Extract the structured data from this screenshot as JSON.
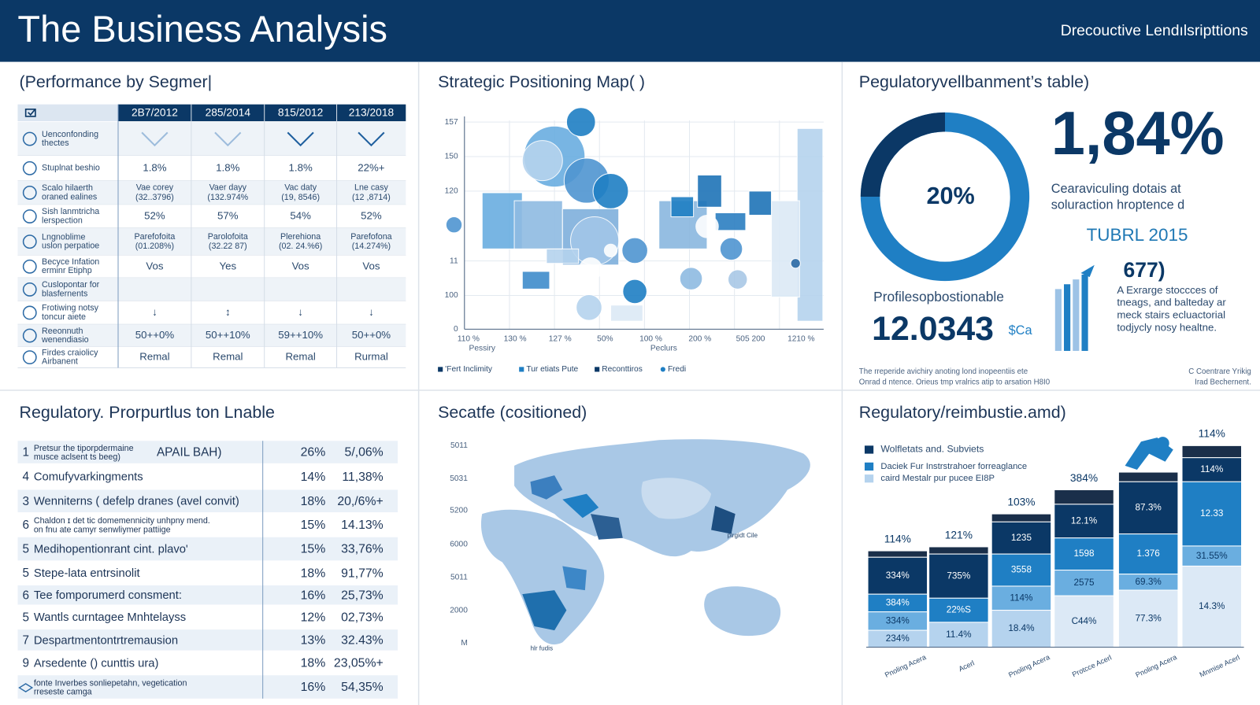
{
  "header": {
    "title": "The Business Analysis",
    "subtitle": "Drecouctive Lendılsripttions"
  },
  "performance": {
    "title": "(Performance by Segmer|",
    "columns": [
      "2B7/2012",
      "285/2014",
      "815/2012",
      "213/2018"
    ],
    "rows": [
      {
        "label": [
          "Uenconfonding",
          "thectes"
        ]
      },
      {
        "label": [
          "Stuplnat beshio"
        ],
        "cells": [
          [
            "1.8%"
          ],
          [
            "1.8%"
          ],
          [
            "1.8%"
          ],
          [
            "22%+"
          ]
        ]
      },
      {
        "label": [
          "Scalo hilaerth",
          "oraned ealines"
        ],
        "cells": [
          [
            "Vae corey",
            "(32..3796)"
          ],
          [
            "Vaer dayy",
            "(132.974%"
          ],
          [
            "Vac daty",
            "(19, 8546)"
          ],
          [
            "Lne casy",
            "(12 ,8714)"
          ]
        ]
      },
      {
        "label": [
          "Sish lanmtricha",
          "lerspection"
        ],
        "cells": [
          [
            "52%"
          ],
          [
            "57%"
          ],
          [
            "54%"
          ],
          [
            "52%"
          ]
        ]
      },
      {
        "label": [
          "Lngnoblime",
          "uslon perpatioe"
        ],
        "cells": [
          [
            "Parefofoita",
            "(01.208%)"
          ],
          [
            "Parolofoita",
            "(32.22 87)"
          ],
          [
            "Plerehiona",
            "(02. 24.%6)"
          ],
          [
            "Parefofona",
            "(14.274%)"
          ]
        ]
      },
      {
        "label": [
          "Becyce Infation",
          "erminr Etiphp"
        ],
        "cells": [
          [
            "Vos"
          ],
          [
            "Yes"
          ],
          [
            "Vos"
          ],
          [
            "Vos"
          ]
        ]
      },
      {
        "label": [
          "Cuslopontar for",
          "blasfernents"
        ]
      },
      {
        "label": [
          "Frotiwing notsy",
          "toncur aiete"
        ],
        "cells": [
          [
            "↓"
          ],
          [
            "↕"
          ],
          [
            "↓"
          ],
          [
            "↓"
          ]
        ]
      },
      {
        "label": [
          "Reeonnuth",
          "wenendiasio"
        ],
        "cells": [
          [
            "50++0%"
          ],
          [
            "50++10%"
          ],
          [
            "59++10%"
          ],
          [
            "50++0%"
          ]
        ]
      },
      {
        "label": [
          "Firdes craiolicy",
          "Airbanent"
        ],
        "cells": [
          [
            "Remal"
          ],
          [
            "Remal"
          ],
          [
            "Remal"
          ],
          [
            "Rurmal"
          ]
        ]
      }
    ]
  },
  "positioning": {
    "title": "Strategic Positioning Map( )",
    "y_labels": [
      "157",
      "150",
      "120",
      "11",
      "100",
      "0"
    ],
    "x_labels": [
      "110 %",
      "130 %",
      "127 %",
      "50%",
      "100 %",
      "200 %",
      "505 200",
      "1210 %"
    ],
    "x_sublabels": [
      "Pessiry",
      "Peclurs"
    ],
    "legend": [
      "'Fert Inclimity",
      "Tur etiats Pute",
      "Reconttiros",
      "Fredi"
    ]
  },
  "regulatory": {
    "title": "Pegulatoryvellbanment’s table)",
    "donut_label": "20%",
    "kpi": "1,84%",
    "kpi_text": [
      "Cearaviculing dotais at",
      "soluraction hroptence d"
    ],
    "year": "TUBRL 2015",
    "count": "677)",
    "count_text": [
      "A Exrarge stoccces of",
      "tneags, and balteday ar",
      "meck stairs ecluactorial",
      "todjycly nosy healtne."
    ],
    "profile_label": "Profilesopbostionable",
    "profile_value": "12.0343",
    "profile_unit": "$Ca",
    "footnote": [
      "The rreperide avichiry anoting lond inopeentiis ete",
      "Onrad d ntence. Orieus tmp vralrics atip to arsation H8I0"
    ],
    "source": [
      "C Coentrare Yrikig",
      "Irad Bechernent."
    ]
  },
  "proportions": {
    "title": "Regulatory. Prorpurtlus ton Lnable",
    "rows": [
      {
        "num": "1",
        "label": [
          "Pretsur the tiporpdermaine",
          "musce aclsent ts beeg)"
        ],
        "extra": "APAIL BAH)",
        "pct": "26%",
        "value": "5/,06%"
      },
      {
        "num": "4",
        "label": [
          "Comufyvarkingments"
        ],
        "pct": "14%",
        "value": "11,38%"
      },
      {
        "num": "3",
        "label": [
          "Wenniterns ( defelp dranes (avel convit)"
        ],
        "pct": "18%",
        "value": "20,/6%+"
      },
      {
        "num": "6",
        "label": [
          "Chaldon ɪ det tic domemennicity unhpny mend.",
          "on fnu ate camyr senwliymer pattiige"
        ],
        "pct": "15%",
        "value": "14.13%"
      },
      {
        "num": "5",
        "label": [
          "Medihopentionrant cint. plavo'"
        ],
        "pct": "15%",
        "value": "33,76%"
      },
      {
        "num": "5",
        "label": [
          "Stepe-lata entrsinolit"
        ],
        "pct": "18%",
        "value": "91,77%"
      },
      {
        "num": "6",
        "label": [
          "Tee fomporumerd consment:"
        ],
        "pct": "16%",
        "value": "25,73%"
      },
      {
        "num": "5",
        "label": [
          "Wantls curntagee Mnhtelayss"
        ],
        "pct": "12%",
        "value": "02,73%"
      },
      {
        "num": "7",
        "label": [
          "Despartmentontrtremausion"
        ],
        "pct": "13%",
        "value": "32.43%"
      },
      {
        "num": "9",
        "label": [
          "Arsedente () cunttis ura)"
        ],
        "pct": "18%",
        "value": "23,05%+"
      },
      {
        "label": [
          "fonte Inverbes sonliepetahn, vegetication",
          "rreseste camga"
        ],
        "pct": "16%",
        "value": "54,35%"
      }
    ]
  },
  "map": {
    "title": "Secatfe (cositioned)",
    "y_labels": [
      "5011",
      "5031",
      "5200",
      "6000",
      "5011",
      "2000",
      "M"
    ],
    "annotations": [
      "pirgidt Cile",
      "hlr fudis"
    ]
  },
  "breakdown": {
    "title": "Regulatory/reimbustie.amd)",
    "legend": [
      "Wolfletats and. Subviets",
      "Daciek Fur Instrstrahoer forreaglance",
      "caird Mestalr pur pucee EI8P"
    ],
    "bars": [
      {
        "top": "114%",
        "segments": [
          "334%",
          "384%",
          "334%",
          "234%"
        ],
        "category": "Pnoling Acera"
      },
      {
        "top": "121%",
        "segments": [
          "735%",
          "22%S",
          "11.4%"
        ],
        "category": "Acerl"
      },
      {
        "top": "103%",
        "segments": [
          "1235",
          "3558",
          "114%",
          "18.4%"
        ],
        "category": "Pnoling Acera"
      },
      {
        "top": "384%",
        "segments": [
          "12.1%",
          "1598",
          "2575",
          "C44%"
        ],
        "category": "Protcce Acerl"
      },
      {
        "segments": [
          "87.3%",
          "1.376",
          "69.3%",
          "77.3%"
        ],
        "category": "Pnoling Acera"
      },
      {
        "top": "114%",
        "segments": [
          "114%",
          "12.33",
          "31.55%",
          "14.3%"
        ],
        "category": "Mnmise Acerl"
      }
    ]
  }
}
